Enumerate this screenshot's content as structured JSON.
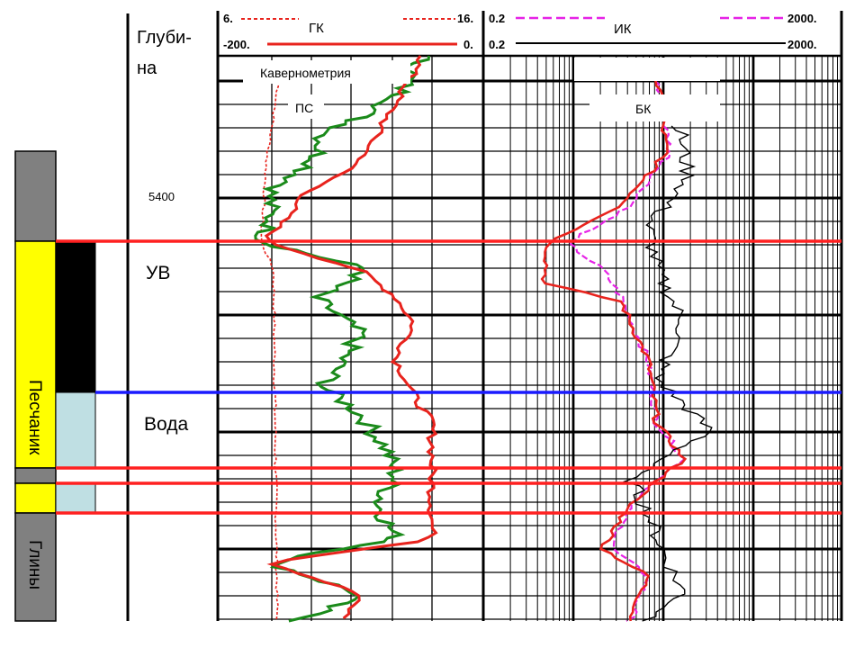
{
  "depth_header": "Глуби-\nна",
  "depth_mark": "5400",
  "zones": {
    "oil_water": "УВ",
    "water": "Вода"
  },
  "lithology": {
    "sandstone": "Песчаник",
    "clay": "Глины"
  },
  "track1": {
    "gk_label": "ГК",
    "gk_min": "6.",
    "gk_max": "16.",
    "ps_min": "-200.",
    "ps_max": "0.",
    "caliper_label": "Кавернометрия",
    "ps_label": "ПС"
  },
  "track2": {
    "ik_label": "ИК",
    "ik_min": "0.2",
    "ik_max": "2000.",
    "bk_min": "0.2",
    "bk_max": "2000.",
    "bk_label": "БК"
  },
  "colors": {
    "gk": "#e8231d",
    "ps": "#e8231d",
    "caliper": "#1a8a1a",
    "ik": "#e623e6",
    "bk": "#e8231d",
    "third": "#000000",
    "boundary_red": "#ff2020",
    "boundary_blue": "#1a1aff",
    "lith_gray": "#808080",
    "lith_yellow": "#ffff00",
    "sat_oil": "#000000",
    "sat_water": "#bfdfe3"
  }
}
